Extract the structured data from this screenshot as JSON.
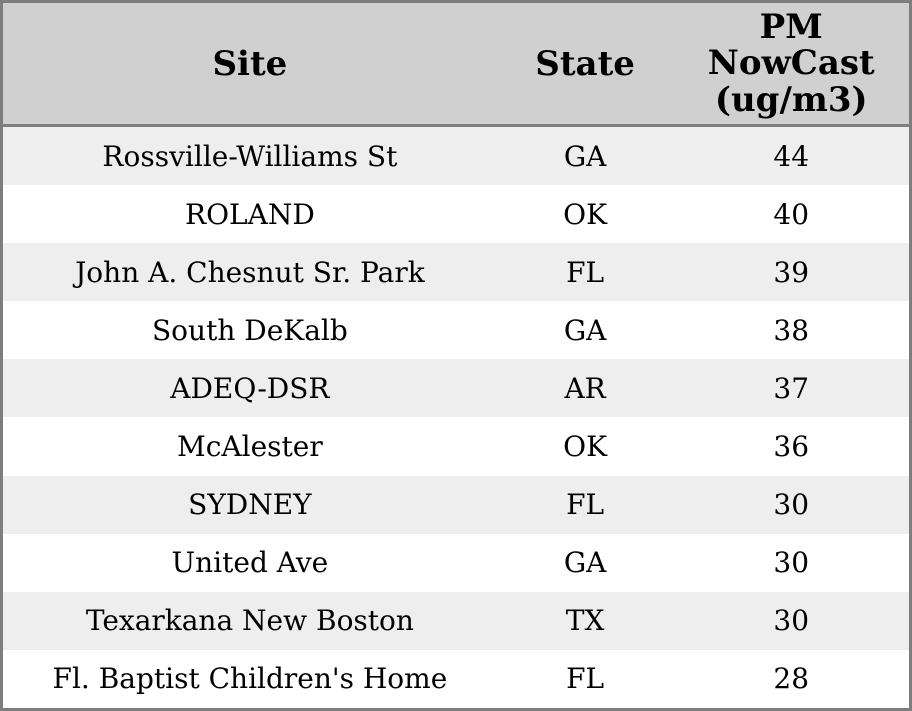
{
  "table": {
    "columns": {
      "site_label": "Site",
      "state_label": "State",
      "value_label": "PM NowCast (ug/m3)"
    },
    "rows": [
      {
        "site": "Rossville-Williams St",
        "state": "GA",
        "value": "44"
      },
      {
        "site": "ROLAND",
        "state": "OK",
        "value": "40"
      },
      {
        "site": "John A. Chesnut Sr. Park",
        "state": "FL",
        "value": "39"
      },
      {
        "site": "South DeKalb",
        "state": "GA",
        "value": "38"
      },
      {
        "site": "ADEQ-DSR",
        "state": "AR",
        "value": "37"
      },
      {
        "site": "McAlester",
        "state": "OK",
        "value": "36"
      },
      {
        "site": "SYDNEY",
        "state": "FL",
        "value": "30"
      },
      {
        "site": "United Ave",
        "state": "GA",
        "value": "30"
      },
      {
        "site": "Texarkana New Boston",
        "state": "TX",
        "value": "30"
      },
      {
        "site": "Fl. Baptist Children's Home",
        "state": "FL",
        "value": "28"
      }
    ],
    "colors": {
      "header_background": "#d0d0d0",
      "stripe_background": "#eeeeee",
      "row_background": "#ffffff",
      "border": "#7e7e7e",
      "text": "#000000"
    }
  }
}
